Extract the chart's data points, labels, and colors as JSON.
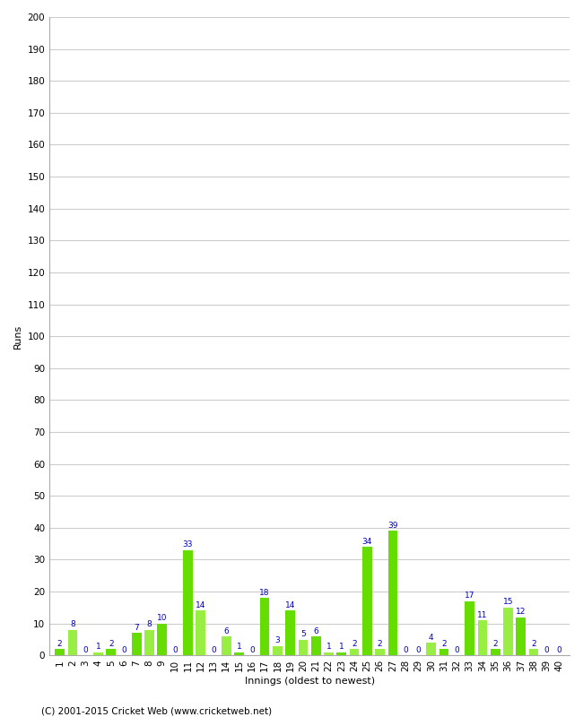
{
  "xlabel": "Innings (oldest to newest)",
  "ylabel": "Runs",
  "ylim": [
    0,
    200
  ],
  "yticks": [
    0,
    10,
    20,
    30,
    40,
    50,
    60,
    70,
    80,
    90,
    100,
    110,
    120,
    130,
    140,
    150,
    160,
    170,
    180,
    190,
    200
  ],
  "innings": [
    1,
    2,
    3,
    4,
    5,
    6,
    7,
    8,
    9,
    10,
    11,
    12,
    13,
    14,
    15,
    16,
    17,
    18,
    19,
    20,
    21,
    22,
    23,
    24,
    25,
    26,
    27,
    28,
    29,
    30,
    31,
    32,
    33,
    34,
    35,
    36,
    37,
    38,
    39,
    40
  ],
  "values": [
    2,
    8,
    0,
    1,
    2,
    0,
    7,
    8,
    10,
    0,
    33,
    14,
    0,
    6,
    1,
    0,
    18,
    3,
    14,
    5,
    6,
    1,
    1,
    2,
    34,
    2,
    39,
    0,
    0,
    4,
    2,
    0,
    17,
    11,
    2,
    15,
    12,
    2,
    0,
    0
  ],
  "bar_color_bright": "#66dd00",
  "bar_color_light": "#99ee44",
  "label_color": "#0000bb",
  "background_color": "#ffffff",
  "grid_color": "#cccccc",
  "footer": "(C) 2001-2015 Cricket Web (www.cricketweb.net)",
  "title_fontsize": 10,
  "axis_label_fontsize": 8,
  "tick_fontsize": 7.5,
  "label_fontsize": 6.5,
  "footer_fontsize": 7.5
}
